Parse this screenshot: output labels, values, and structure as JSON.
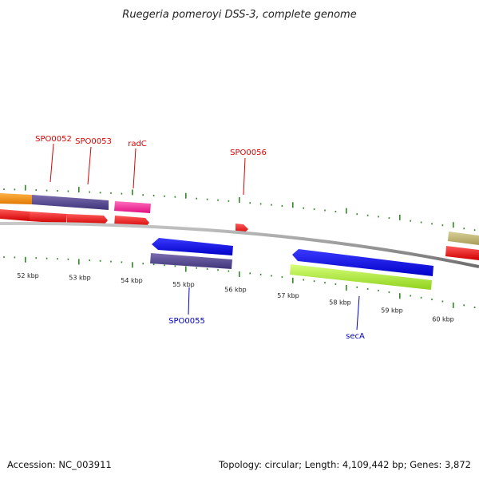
{
  "title": "Ruegeria pomeroyi DSS-3, complete genome",
  "accession": "Accession: NC_003911",
  "summary": "Topology: circular; Length: 4,109,442 bp; Genes: 3,872",
  "colors": {
    "forward_label": "#dd0000",
    "reverse_label": "#0000bb",
    "tick": "#2e8b22",
    "backbone": "#888888"
  },
  "scale_labels": [
    "52 kbp",
    "53 kbp",
    "54 kbp",
    "55 kbp",
    "56 kbp",
    "57 kbp",
    "58 kbp",
    "59 kbp",
    "60 kbp"
  ],
  "forward_labels": [
    "SPO0052",
    "SPO0053",
    "radC",
    "SPO0056"
  ],
  "reverse_labels": [
    "SPO0055",
    "secA"
  ]
}
